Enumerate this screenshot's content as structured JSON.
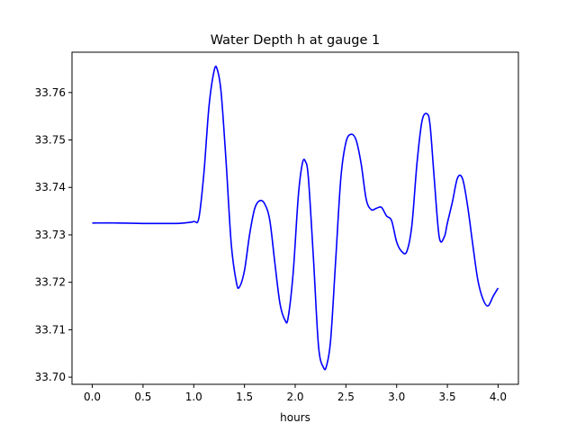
{
  "chart_data": {
    "type": "line",
    "title": "Water Depth h at gauge 1",
    "xlabel": "hours",
    "ylabel": "",
    "xlim": [
      -0.2,
      4.2
    ],
    "ylim": [
      33.6985,
      33.7685
    ],
    "xticks": [
      0.0,
      0.5,
      1.0,
      1.5,
      2.0,
      2.5,
      3.0,
      3.5,
      4.0
    ],
    "xtick_labels": [
      "0.0",
      "0.5",
      "1.0",
      "1.5",
      "2.0",
      "2.5",
      "3.0",
      "3.5",
      "4.0"
    ],
    "yticks": [
      33.7,
      33.71,
      33.72,
      33.73,
      33.74,
      33.75,
      33.76
    ],
    "ytick_labels": [
      "33.70",
      "33.71",
      "33.72",
      "33.73",
      "33.74",
      "33.75",
      "33.76"
    ],
    "grid": false,
    "series": [
      {
        "color": "#0000ff",
        "x": [
          0.0,
          0.25,
          0.5,
          0.6,
          0.8,
          0.9,
          1.0,
          1.05,
          1.1,
          1.15,
          1.2,
          1.23,
          1.27,
          1.32,
          1.37,
          1.42,
          1.45,
          1.5,
          1.55,
          1.6,
          1.65,
          1.7,
          1.75,
          1.8,
          1.85,
          1.9,
          1.93,
          1.98,
          2.03,
          2.07,
          2.1,
          2.13,
          2.18,
          2.23,
          2.28,
          2.31,
          2.35,
          2.4,
          2.45,
          2.5,
          2.55,
          2.6,
          2.65,
          2.7,
          2.75,
          2.8,
          2.85,
          2.9,
          2.95,
          3.0,
          3.05,
          3.1,
          3.15,
          3.2,
          3.25,
          3.3,
          3.33,
          3.37,
          3.42,
          3.47,
          3.5,
          3.55,
          3.6,
          3.65,
          3.7,
          3.75,
          3.8,
          3.85,
          3.9,
          3.95,
          4.0
        ],
        "y": [
          33.7325,
          33.7325,
          33.7324,
          33.7324,
          33.7324,
          33.7325,
          33.7328,
          33.7335,
          33.743,
          33.757,
          33.7645,
          33.765,
          33.76,
          33.745,
          33.728,
          33.72,
          33.719,
          33.7225,
          33.73,
          33.7355,
          33.7372,
          33.7365,
          33.733,
          33.724,
          33.7155,
          33.712,
          33.7125,
          33.722,
          33.738,
          33.745,
          33.7455,
          33.742,
          33.725,
          33.7065,
          33.702,
          33.7025,
          33.708,
          33.725,
          33.742,
          33.7495,
          33.7512,
          33.75,
          33.745,
          33.7375,
          33.7353,
          33.7356,
          33.7358,
          33.734,
          33.733,
          33.7285,
          33.7265,
          33.7265,
          33.732,
          33.745,
          33.754,
          33.7555,
          33.753,
          33.742,
          33.7295,
          33.7296,
          33.7325,
          33.737,
          33.742,
          33.7418,
          33.736,
          33.728,
          33.7205,
          33.7165,
          33.715,
          33.717,
          33.7188
        ]
      }
    ]
  }
}
